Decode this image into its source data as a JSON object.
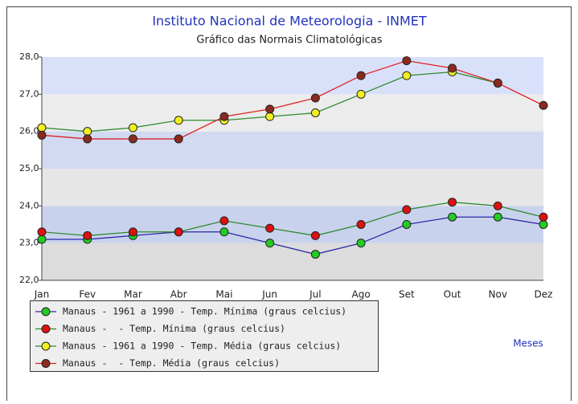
{
  "chart_data": {
    "type": "line",
    "title": "Instituto Nacional de Meteorologia - INMET",
    "subtitle": "Gráfico das Normais Climatológicas",
    "x_label": "Meses",
    "categories": [
      "Jan",
      "Fev",
      "Mar",
      "Abr",
      "Mai",
      "Jun",
      "Jul",
      "Ago",
      "Set",
      "Out",
      "Nov",
      "Dez"
    ],
    "ylim": [
      22,
      28
    ],
    "yticks": [
      {
        "value": 22,
        "label": "22,0"
      },
      {
        "value": 23,
        "label": "23,0"
      },
      {
        "value": 24,
        "label": "24,0"
      },
      {
        "value": 25,
        "label": "25,0"
      },
      {
        "value": 26,
        "label": "26,0"
      },
      {
        "value": 27,
        "label": "27,0"
      },
      {
        "value": 28,
        "label": "28,0"
      }
    ],
    "band_colors": [
      "#dcdcdc",
      "#c9d2ec",
      "#e6e6e6",
      "#d2daf2",
      "#ececec",
      "#d9e1fa"
    ],
    "series": [
      {
        "name": "Manaus - 1961 a 1990 - Temp. Mínima (graus celcius)",
        "color": "#22cc22",
        "line_color": "#2a2aa8",
        "values": [
          23.1,
          23.1,
          23.2,
          23.3,
          23.3,
          23.0,
          22.7,
          23.0,
          23.5,
          23.7,
          23.7,
          23.5
        ]
      },
      {
        "name": "Manaus -  - Temp. Mínima (graus celcius)",
        "color": "#dd1111",
        "line_color": "#2e8a2e",
        "values": [
          23.3,
          23.2,
          23.3,
          23.3,
          23.6,
          23.4,
          23.2,
          23.5,
          23.9,
          24.1,
          24.0,
          23.7
        ]
      },
      {
        "name": "Manaus - 1961 a 1990 - Temp. Média (graus celcius)",
        "color": "#f0f020",
        "line_color": "#2e8a2e",
        "values": [
          26.1,
          26.0,
          26.1,
          26.3,
          26.3,
          26.4,
          26.5,
          27.0,
          27.5,
          27.6,
          27.3,
          null
        ]
      },
      {
        "name": "Manaus -  - Temp. Média (graus celcius)",
        "color": "#8b2a1e",
        "line_color": "#dd2222",
        "values": [
          25.9,
          25.8,
          25.8,
          25.8,
          26.4,
          26.6,
          26.9,
          27.5,
          27.9,
          27.7,
          27.3,
          26.7
        ]
      }
    ]
  }
}
